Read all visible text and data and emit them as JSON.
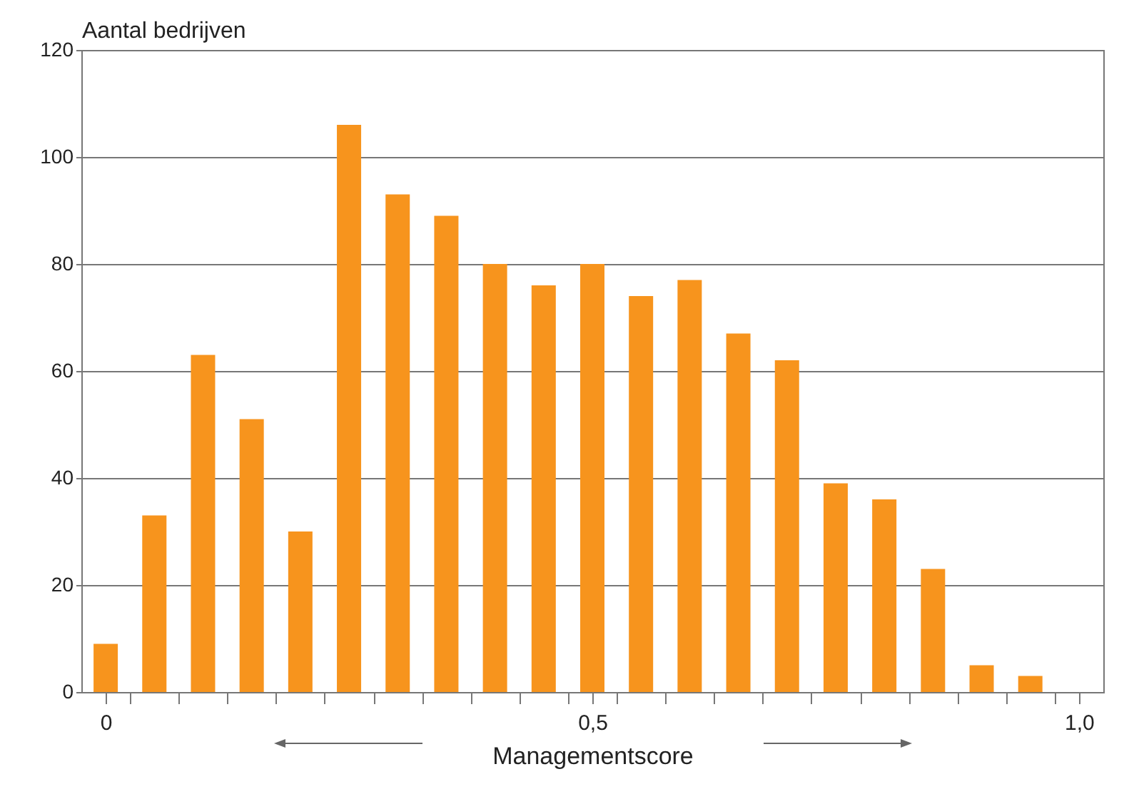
{
  "chart_data": {
    "type": "bar",
    "ylabel": "Aantal bedrijven",
    "xlabel": "Managementscore",
    "x": [
      0,
      0.05,
      0.1,
      0.15,
      0.2,
      0.25,
      0.3,
      0.35,
      0.4,
      0.45,
      0.5,
      0.55,
      0.6,
      0.65,
      0.7,
      0.75,
      0.8,
      0.85,
      0.9,
      0.95
    ],
    "values": [
      9,
      33,
      63,
      51,
      30,
      106,
      93,
      89,
      80,
      76,
      80,
      74,
      77,
      67,
      62,
      39,
      36,
      23,
      5,
      3
    ],
    "color": "#f7941d",
    "xlim": [
      -0.025,
      1.025
    ],
    "xticks": [
      {
        "value": 0,
        "label": "0"
      },
      {
        "value": 0.5,
        "label": "0,5"
      },
      {
        "value": 1,
        "label": "1,0"
      },
      {
        "value": 0.025,
        "label": null
      },
      {
        "value": 0.075,
        "label": null
      },
      {
        "value": 0.125,
        "label": null
      },
      {
        "value": 0.175,
        "label": null
      },
      {
        "value": 0.225,
        "label": null
      },
      {
        "value": 0.275,
        "label": null
      },
      {
        "value": 0.325,
        "label": null
      },
      {
        "value": 0.375,
        "label": null
      },
      {
        "value": 0.425,
        "label": null
      },
      {
        "value": 0.475,
        "label": null
      },
      {
        "value": 0.525,
        "label": null
      },
      {
        "value": 0.575,
        "label": null
      },
      {
        "value": 0.625,
        "label": null
      },
      {
        "value": 0.675,
        "label": null
      },
      {
        "value": 0.725,
        "label": null
      },
      {
        "value": 0.775,
        "label": null
      },
      {
        "value": 0.825,
        "label": null
      },
      {
        "value": 0.875,
        "label": null
      },
      {
        "value": 0.925,
        "label": null
      },
      {
        "value": 0.975,
        "label": null
      }
    ],
    "ylim": [
      0,
      120
    ],
    "yticks": [
      0,
      20,
      40,
      60,
      80,
      100,
      120
    ],
    "grid": "y"
  }
}
